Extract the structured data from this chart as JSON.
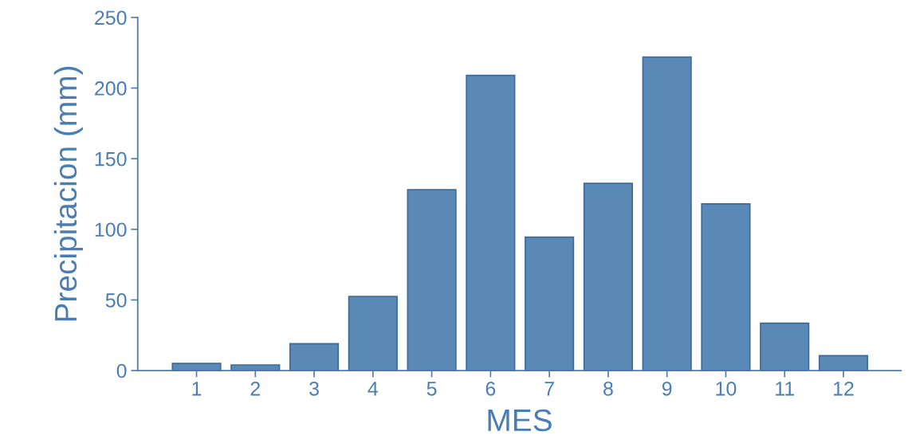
{
  "chart_data": {
    "type": "bar",
    "xlabel": "MES",
    "ylabel": "Precipitacion (mm)",
    "categories": [
      "1",
      "2",
      "3",
      "4",
      "5",
      "6",
      "7",
      "8",
      "9",
      "10",
      "11",
      "12"
    ],
    "values": [
      5,
      4,
      19,
      52.5,
      128,
      209,
      94.5,
      132.5,
      222,
      118,
      33.5,
      10.5
    ],
    "color": "#5a89b5",
    "ylim": [
      0,
      250
    ],
    "yticks": [
      0,
      50,
      100,
      150,
      200,
      250
    ],
    "grid": false
  }
}
